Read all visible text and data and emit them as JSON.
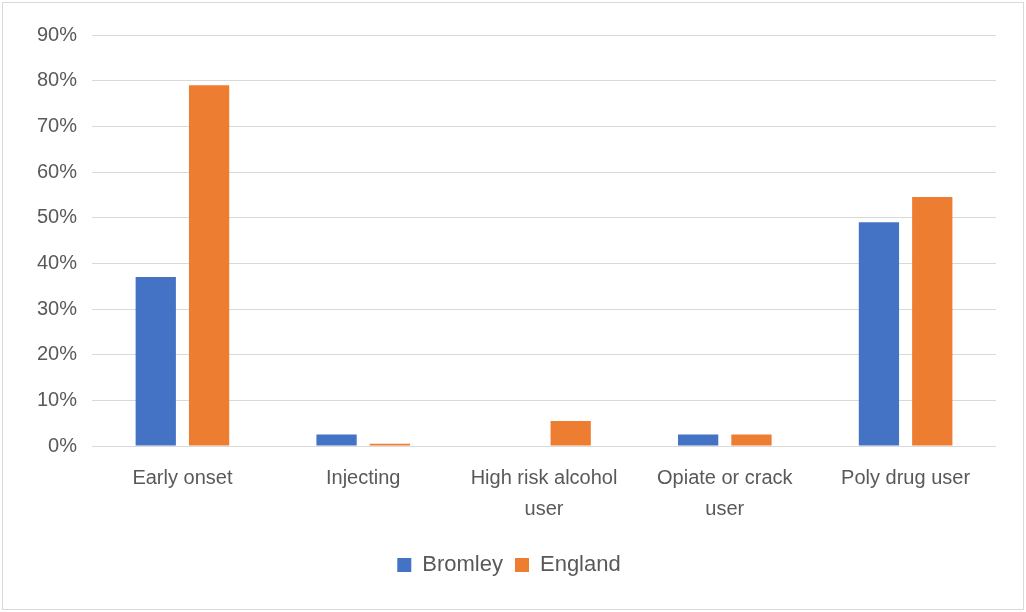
{
  "chart_data": {
    "type": "bar",
    "categories": [
      "Early onset",
      "Injecting",
      "High risk alcohol user",
      "Opiate or crack user",
      "Poly drug user"
    ],
    "series": [
      {
        "name": "Bromley",
        "color": "#4472c4",
        "values": [
          37,
          2.5,
          0,
          2.5,
          49
        ]
      },
      {
        "name": "England",
        "color": "#ed7d31",
        "values": [
          79,
          0.5,
          5.5,
          2.5,
          54.5
        ]
      }
    ],
    "ylim": [
      0,
      90
    ],
    "yticks": [
      {
        "value": 0,
        "label": "0%"
      },
      {
        "value": 10,
        "label": "10%"
      },
      {
        "value": 20,
        "label": "20%"
      },
      {
        "value": 30,
        "label": "30%"
      },
      {
        "value": 40,
        "label": "40%"
      },
      {
        "value": 50,
        "label": "50%"
      },
      {
        "value": 60,
        "label": "60%"
      },
      {
        "value": 70,
        "label": "70%"
      },
      {
        "value": 80,
        "label": "80%"
      },
      {
        "value": 90,
        "label": "90%"
      }
    ],
    "grid": "y",
    "legend": "bottom"
  }
}
